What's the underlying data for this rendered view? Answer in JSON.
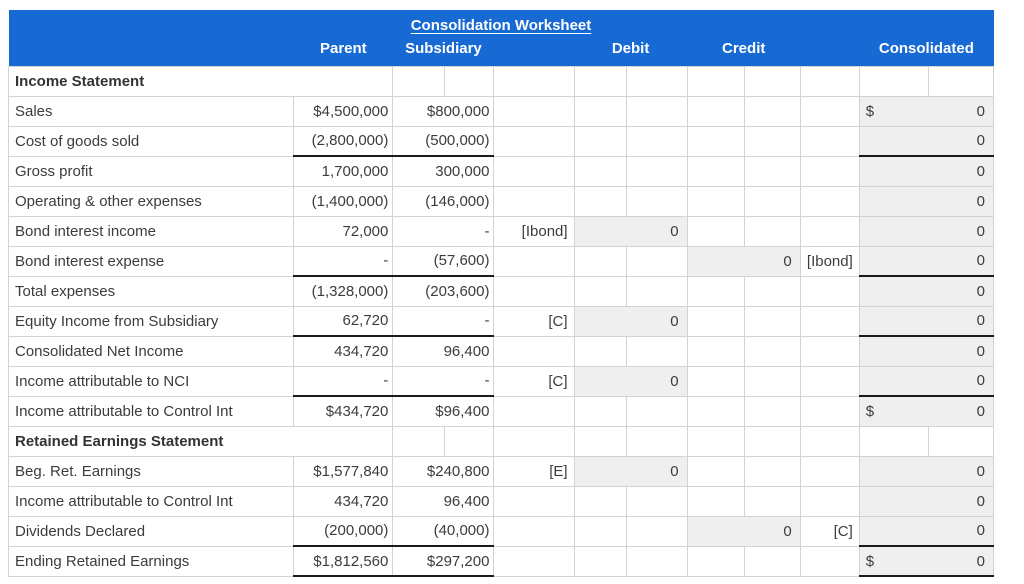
{
  "title": "Consolidation Worksheet",
  "columns": {
    "parent": "Parent",
    "subsidiary": "Subsidiary",
    "debit": "Debit",
    "credit": "Credit",
    "consolidated": "Consolidated"
  },
  "colors": {
    "header_bg": "#1769d3",
    "header_text": "#ffffff",
    "answer_cell_fill": "#efefef",
    "grid_line": "#d3d3d3",
    "body_text": "#3c3c3c",
    "subtotal_underline": "#1b1b1b"
  },
  "rows": [
    {
      "section": true,
      "label": "Income Statement"
    },
    {
      "section": false,
      "label": "Sales",
      "parent": "$4,500,000",
      "subsidiary": "$800,000",
      "debit_label": "",
      "debit_value": "",
      "credit_value": "",
      "credit_label": "",
      "cons_dollar": true,
      "cons_value": "0",
      "underline": false
    },
    {
      "section": false,
      "label": "Cost of goods sold",
      "parent": "(2,800,000)",
      "subsidiary": "(500,000)",
      "debit_label": "",
      "debit_value": "",
      "credit_value": "",
      "credit_label": "",
      "cons_dollar": false,
      "cons_value": "0",
      "underline": true
    },
    {
      "section": false,
      "label": "Gross profit",
      "parent": "1,700,000",
      "subsidiary": "300,000",
      "debit_label": "",
      "debit_value": "",
      "credit_value": "",
      "credit_label": "",
      "cons_dollar": false,
      "cons_value": "0",
      "underline": false
    },
    {
      "section": false,
      "label": "Operating & other expenses",
      "parent": "(1,400,000)",
      "subsidiary": "(146,000)",
      "debit_label": "",
      "debit_value": "",
      "credit_value": "",
      "credit_label": "",
      "cons_dollar": false,
      "cons_value": "0",
      "underline": false
    },
    {
      "section": false,
      "label": "Bond interest income",
      "parent": "72,000",
      "subsidiary": "-",
      "debit_label": "[Ibond]",
      "debit_value": "0",
      "credit_value": "",
      "credit_label": "",
      "cons_dollar": false,
      "cons_value": "0",
      "underline": false
    },
    {
      "section": false,
      "label": "Bond interest expense",
      "parent": "-",
      "subsidiary": "(57,600)",
      "debit_label": "",
      "debit_value": "",
      "credit_value": "0",
      "credit_label": "[Ibond]",
      "cons_dollar": false,
      "cons_value": "0",
      "underline": true
    },
    {
      "section": false,
      "label": "Total expenses",
      "parent": "(1,328,000)",
      "subsidiary": "(203,600)",
      "debit_label": "",
      "debit_value": "",
      "credit_value": "",
      "credit_label": "",
      "cons_dollar": false,
      "cons_value": "0",
      "underline": false
    },
    {
      "section": false,
      "label": "Equity Income from Subsidiary",
      "parent": "62,720",
      "subsidiary": "-",
      "debit_label": "[C]",
      "debit_value": "0",
      "credit_value": "",
      "credit_label": "",
      "cons_dollar": false,
      "cons_value": "0",
      "underline": true
    },
    {
      "section": false,
      "label": "Consolidated Net Income",
      "parent": "434,720",
      "subsidiary": "96,400",
      "debit_label": "",
      "debit_value": "",
      "credit_value": "",
      "credit_label": "",
      "cons_dollar": false,
      "cons_value": "0",
      "underline": false
    },
    {
      "section": false,
      "label": "Income attributable to NCI",
      "parent": "-",
      "subsidiary": "-",
      "debit_label": "[C]",
      "debit_value": "0",
      "credit_value": "",
      "credit_label": "",
      "cons_dollar": false,
      "cons_value": "0",
      "underline": true
    },
    {
      "section": false,
      "label": "Income attributable to Control Int",
      "parent": "$434,720",
      "subsidiary": "$96,400",
      "debit_label": "",
      "debit_value": "",
      "credit_value": "",
      "credit_label": "",
      "cons_dollar": true,
      "cons_value": "0",
      "underline": false
    },
    {
      "section": true,
      "label": "Retained Earnings Statement"
    },
    {
      "section": false,
      "label": "Beg. Ret. Earnings",
      "parent": "$1,577,840",
      "subsidiary": "$240,800",
      "debit_label": "[E]",
      "debit_value": "0",
      "credit_value": "",
      "credit_label": "",
      "cons_dollar": false,
      "cons_value": "0",
      "underline": false
    },
    {
      "section": false,
      "label": "Income attributable to Control Int",
      "parent": "434,720",
      "subsidiary": "96,400",
      "debit_label": "",
      "debit_value": "",
      "credit_value": "",
      "credit_label": "",
      "cons_dollar": false,
      "cons_value": "0",
      "underline": false
    },
    {
      "section": false,
      "label": "Dividends Declared",
      "parent": "(200,000)",
      "subsidiary": "(40,000)",
      "debit_label": "",
      "debit_value": "",
      "credit_value": "0",
      "credit_label": "[C]",
      "cons_dollar": false,
      "cons_value": "0",
      "underline": true
    },
    {
      "section": false,
      "label": "Ending Retained Earnings",
      "parent": "$1,812,560",
      "subsidiary": "$297,200",
      "debit_label": "",
      "debit_value": "",
      "credit_value": "",
      "credit_label": "",
      "cons_dollar": true,
      "cons_value": "0",
      "underline": true
    }
  ]
}
